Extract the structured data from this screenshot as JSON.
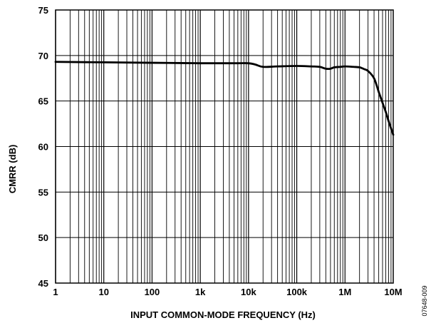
{
  "chart_data": {
    "type": "line",
    "title": "",
    "xlabel": "INPUT COMMON-MODE FREQUENCY (Hz)",
    "ylabel": "CMRR (dB)",
    "x_scale": "log",
    "xlim": [
      1,
      10000000
    ],
    "ylim": [
      45,
      75
    ],
    "grid": true,
    "x_ticks": [
      {
        "value": 1,
        "label": "1"
      },
      {
        "value": 10,
        "label": "10"
      },
      {
        "value": 100,
        "label": "100"
      },
      {
        "value": 1000,
        "label": "1k"
      },
      {
        "value": 10000,
        "label": "10k"
      },
      {
        "value": 100000,
        "label": "100k"
      },
      {
        "value": 1000000,
        "label": "1M"
      },
      {
        "value": 10000000,
        "label": "10M"
      }
    ],
    "y_ticks": [
      {
        "value": 45,
        "label": "45"
      },
      {
        "value": 50,
        "label": "50"
      },
      {
        "value": 55,
        "label": "55"
      },
      {
        "value": 60,
        "label": "60"
      },
      {
        "value": 65,
        "label": "65"
      },
      {
        "value": 70,
        "label": "70"
      },
      {
        "value": 75,
        "label": "75"
      }
    ],
    "series": [
      {
        "x": [
          1,
          10,
          100,
          1000,
          5000,
          10000,
          14000,
          20000,
          40000,
          100000,
          200000,
          300000,
          400000,
          500000,
          600000,
          800000,
          1000000,
          1500000,
          2000000,
          2500000,
          3000000,
          4000000,
          5000000,
          6000000,
          7000000,
          8000000,
          9000000,
          10000000
        ],
        "y": [
          69.3,
          69.25,
          69.2,
          69.15,
          69.15,
          69.15,
          69.0,
          68.75,
          68.8,
          68.85,
          68.8,
          68.75,
          68.55,
          68.55,
          68.7,
          68.75,
          68.8,
          68.75,
          68.7,
          68.5,
          68.3,
          67.5,
          66.0,
          64.8,
          63.8,
          62.8,
          62.0,
          61.3
        ]
      }
    ],
    "figure_id": "07648-009"
  }
}
